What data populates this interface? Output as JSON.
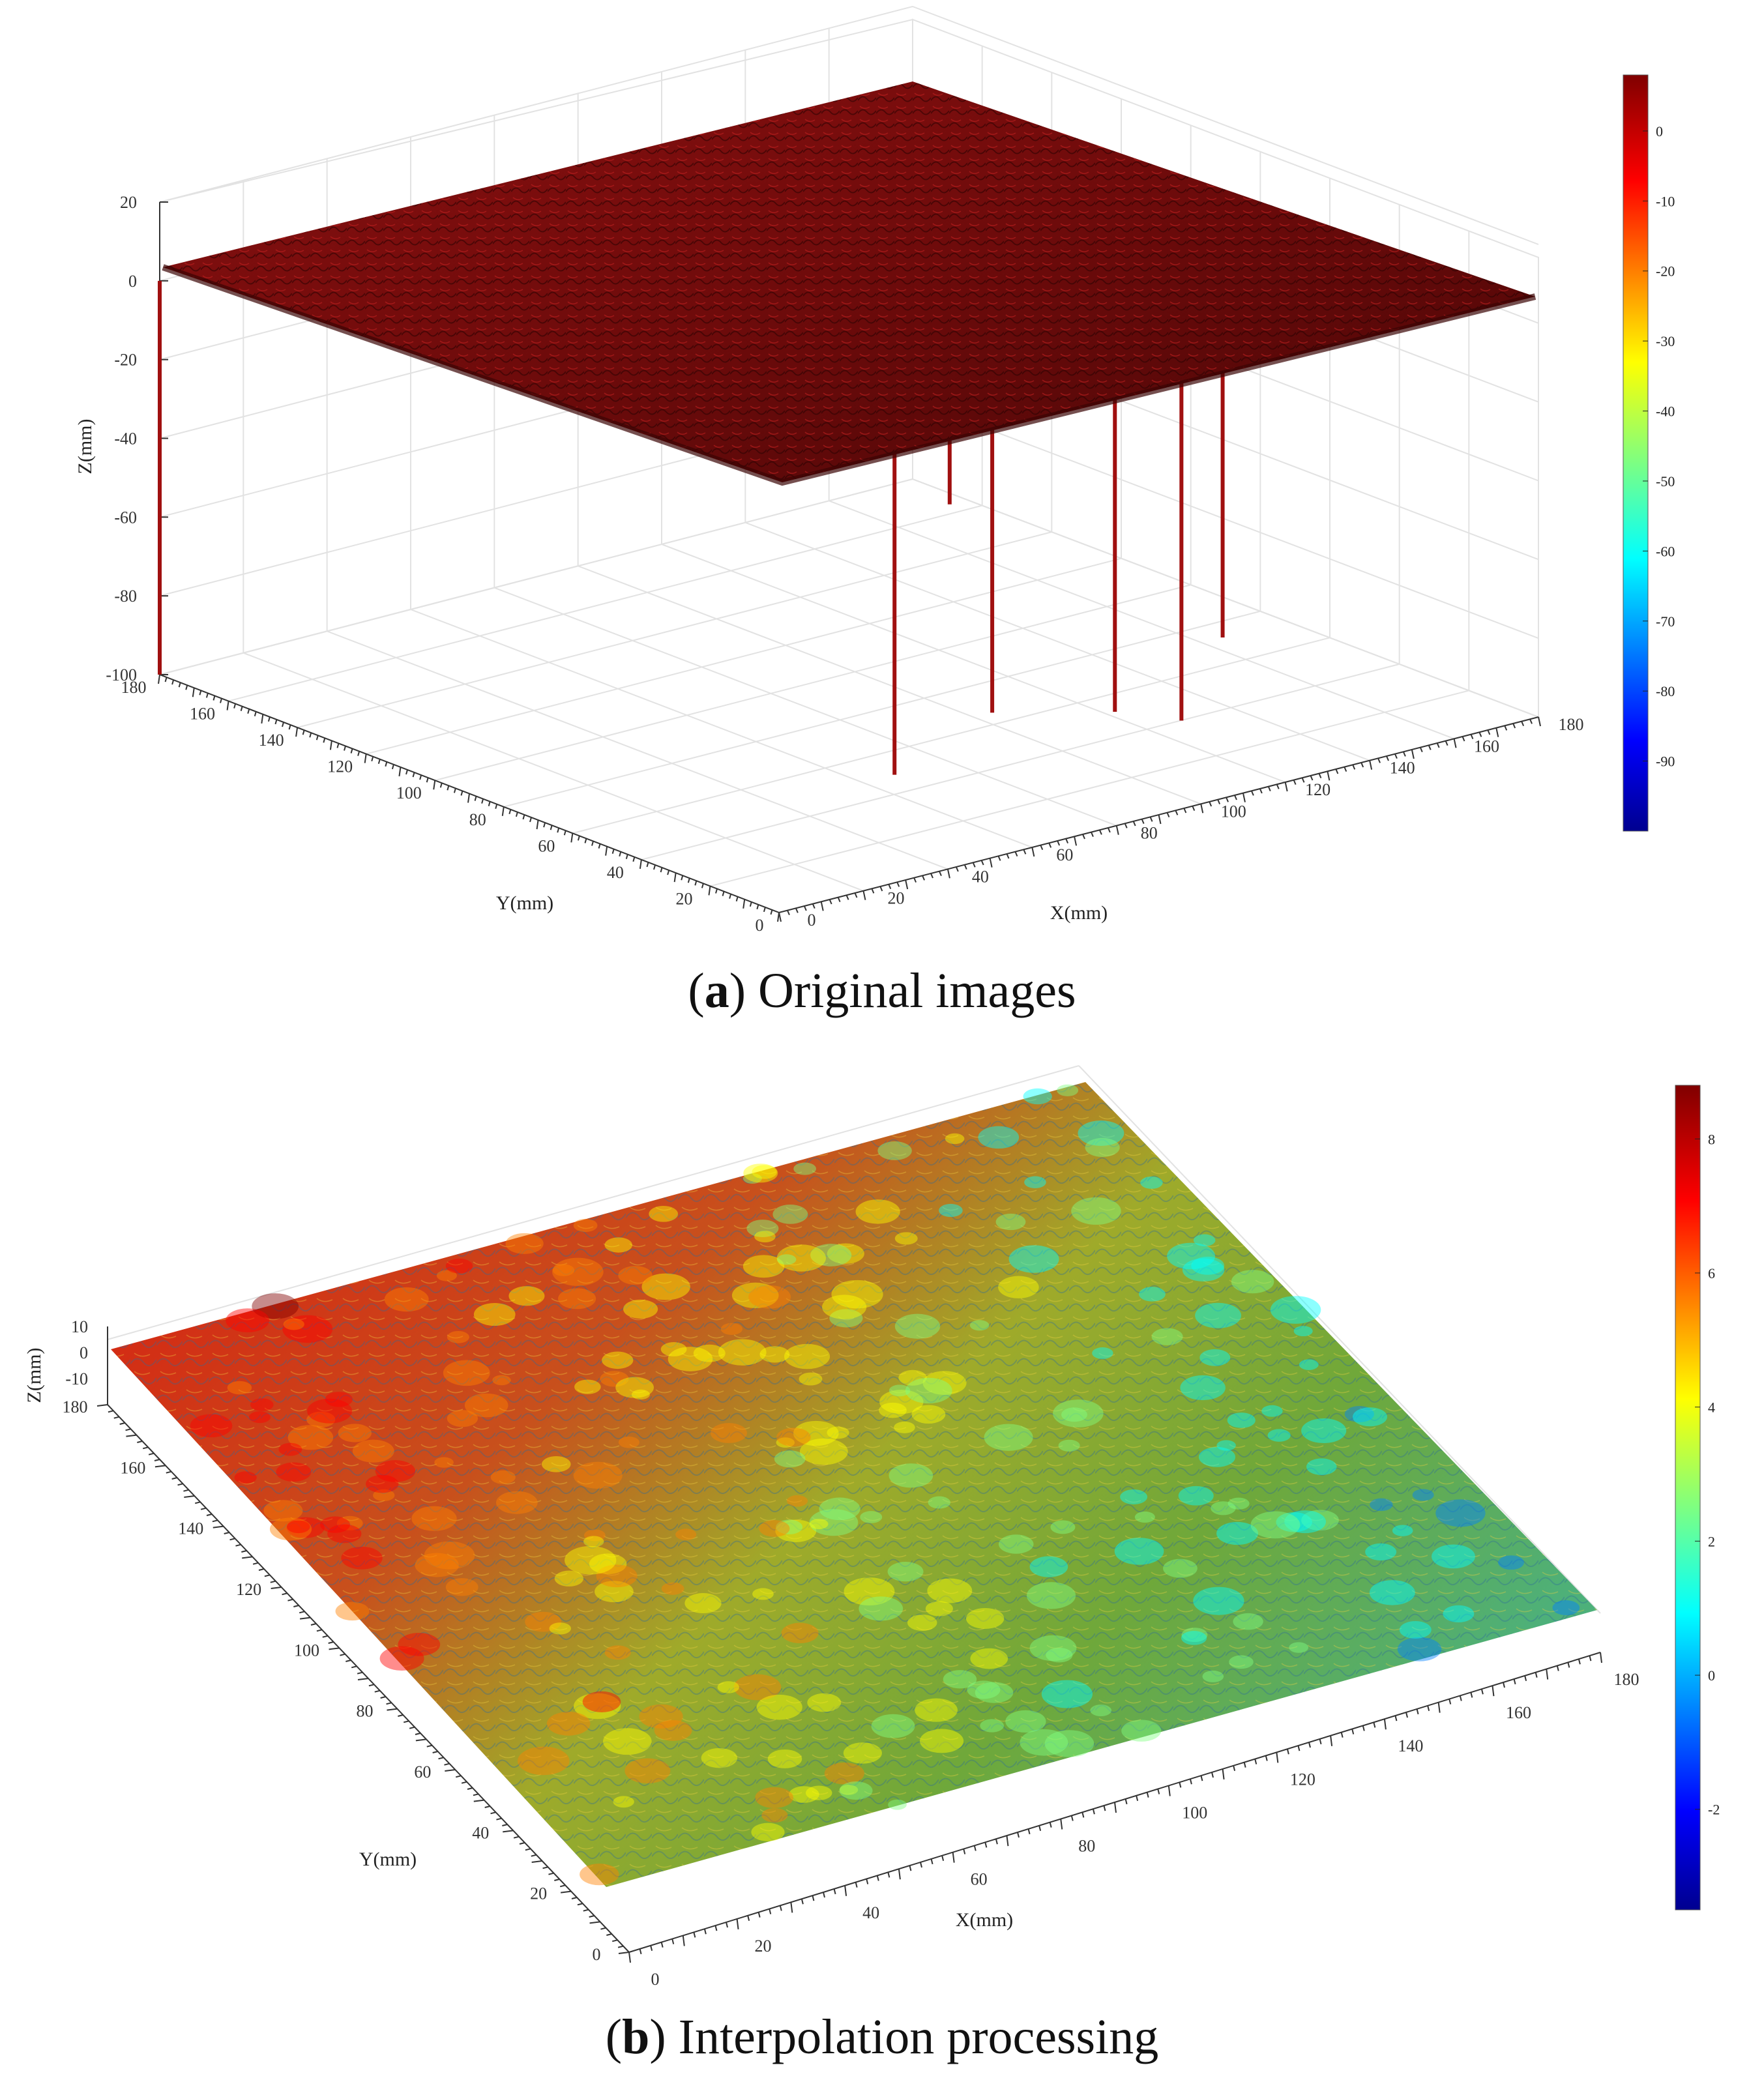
{
  "chart_data": [
    {
      "type": "surface",
      "panel": "a",
      "caption_letter": "a",
      "caption_text": "Original images",
      "xlabel": "X(mm)",
      "ylabel": "Y(mm)",
      "zlabel": "Z(mm)",
      "xlim": [
        0,
        180
      ],
      "ylim": [
        0,
        180
      ],
      "zlim": [
        -100,
        20
      ],
      "x_ticks": [
        "0",
        "20",
        "40",
        "60",
        "80",
        "100",
        "120",
        "140",
        "160",
        "180"
      ],
      "y_ticks": [
        "0",
        "20",
        "40",
        "60",
        "80",
        "100",
        "120",
        "140",
        "160",
        "180"
      ],
      "z_ticks": [
        "-100",
        "-80",
        "-60",
        "-40",
        "-20",
        "0",
        "20"
      ],
      "colorbar": {
        "range": [
          -100,
          8
        ],
        "ticks": [
          "0",
          "-10",
          "-20",
          "-30",
          "-40",
          "-50",
          "-60",
          "-70",
          "-80",
          "-90"
        ]
      },
      "surface_mean_z": 0,
      "spikes": [
        {
          "x": 0,
          "y": 180,
          "z": -100
        },
        {
          "x": 60,
          "y": 40,
          "z": -95
        },
        {
          "x": 75,
          "y": 30,
          "z": -80
        },
        {
          "x": 100,
          "y": 25,
          "z": -85
        },
        {
          "x": 128,
          "y": 40,
          "z": -100
        },
        {
          "x": 150,
          "y": 55,
          "z": -90
        },
        {
          "x": 175,
          "y": 165,
          "z": -100
        }
      ],
      "grid": true
    },
    {
      "type": "surface",
      "panel": "b",
      "caption_letter": "b",
      "caption_text": "Interpolation processing",
      "xlabel": "X(mm)",
      "ylabel": "Y(mm)",
      "zlabel": "Z(mm)",
      "xlim": [
        0,
        180
      ],
      "ylim": [
        0,
        180
      ],
      "zlim": [
        -10,
        10
      ],
      "x_ticks": [
        "0",
        "20",
        "40",
        "60",
        "80",
        "100",
        "120",
        "140",
        "160",
        "180"
      ],
      "y_ticks": [
        "0",
        "20",
        "40",
        "60",
        "80",
        "100",
        "120",
        "140",
        "160",
        "180"
      ],
      "z_ticks": [
        "-10",
        "0",
        "10"
      ],
      "colorbar": {
        "range": [
          -3.5,
          8.8
        ],
        "ticks": [
          "8",
          "6",
          "4",
          "2",
          "0",
          "-2"
        ]
      },
      "grid": false
    }
  ],
  "colormap": [
    "#00008f",
    "#0000ff",
    "#0080ff",
    "#00ffff",
    "#80ff80",
    "#ffff00",
    "#ff8000",
    "#ff0000",
    "#800000"
  ]
}
